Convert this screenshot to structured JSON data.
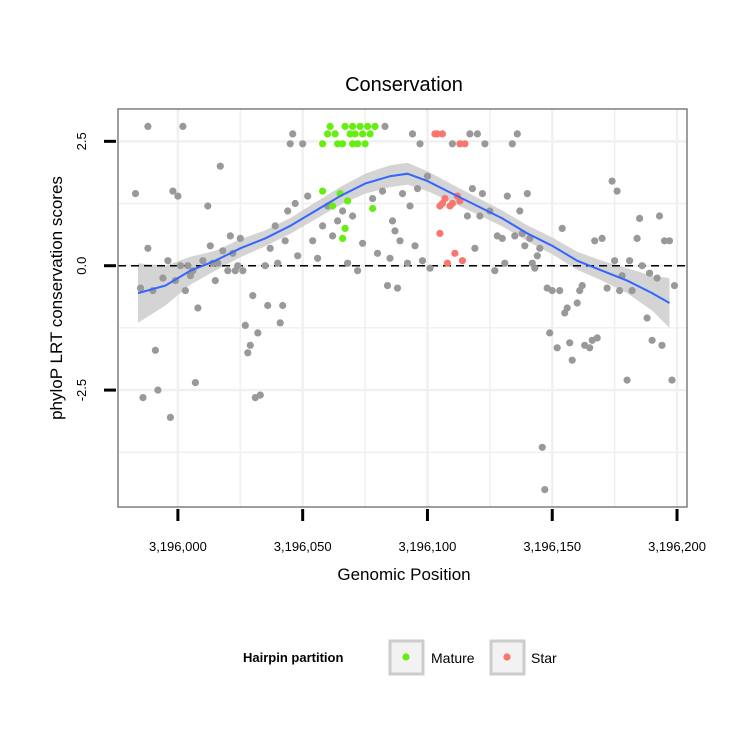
{
  "chart_data": {
    "type": "scatter",
    "title": "Conservation",
    "xlabel": "Genomic Position",
    "ylabel": "phyloP LRT conservation scores",
    "xlim": [
      3195976,
      3196204
    ],
    "ylim": [
      -4.85,
      3.15
    ],
    "x_ticks": [
      3196000,
      3196050,
      3196100,
      3196150,
      3196200
    ],
    "x_tick_labels": [
      "3,196,000",
      "3,196,050",
      "3,196,100",
      "3,196,150",
      "3,196,200"
    ],
    "y_ticks": [
      -2.5,
      0.0,
      2.5
    ],
    "y_tick_labels": [
      "-2.5",
      "0.0",
      "2.5"
    ],
    "reference_line": {
      "y": 0,
      "style": "dashed"
    },
    "legend": {
      "title": "Hairpin partition",
      "position": "bottom",
      "entries": [
        {
          "name": "Mature",
          "color": "#66ee11"
        },
        {
          "name": "Star",
          "color": "#f8766d"
        }
      ]
    },
    "colors": {
      "other": "#999999",
      "mature": "#66ee11",
      "star": "#f8766d",
      "smooth": "#3366ff",
      "ribbon": "#cccccc",
      "grid": "#f0f0f0",
      "panel_border": "#7f7f7f"
    },
    "series": [
      {
        "name": "Other",
        "points": [
          [
            3195983,
            1.45
          ],
          [
            3195985,
            -0.45
          ],
          [
            3195986,
            -2.65
          ],
          [
            3195988,
            2.8
          ],
          [
            3195988,
            0.35
          ],
          [
            3195990,
            -0.5
          ],
          [
            3195991,
            -1.7
          ],
          [
            3195992,
            -2.5
          ],
          [
            3195994,
            -0.25
          ],
          [
            3195996,
            0.1
          ],
          [
            3195997,
            -3.05
          ],
          [
            3195998,
            1.5
          ],
          [
            3195999,
            -0.3
          ],
          [
            3196000,
            1.4
          ],
          [
            3196001,
            0.0
          ],
          [
            3196002,
            2.8
          ],
          [
            3196003,
            -0.5
          ],
          [
            3196004,
            0.0
          ],
          [
            3196005,
            -0.2
          ],
          [
            3196006,
            -0.1
          ],
          [
            3196007,
            -2.35
          ],
          [
            3196008,
            -0.85
          ],
          [
            3196010,
            0.1
          ],
          [
            3196012,
            1.2
          ],
          [
            3196013,
            0.4
          ],
          [
            3196014,
            0.05
          ],
          [
            3196015,
            -0.3
          ],
          [
            3196016,
            0.05
          ],
          [
            3196017,
            2.0
          ],
          [
            3196018,
            0.3
          ],
          [
            3196020,
            -0.1
          ],
          [
            3196021,
            0.6
          ],
          [
            3196022,
            0.25
          ],
          [
            3196023,
            -0.1
          ],
          [
            3196024,
            0.0
          ],
          [
            3196025,
            0.55
          ],
          [
            3196026,
            -0.1
          ],
          [
            3196027,
            -1.2
          ],
          [
            3196028,
            -1.75
          ],
          [
            3196029,
            -1.6
          ],
          [
            3196030,
            -0.6
          ],
          [
            3196031,
            -2.65
          ],
          [
            3196032,
            -1.35
          ],
          [
            3196033,
            -2.6
          ],
          [
            3196035,
            0.0
          ],
          [
            3196036,
            -0.8
          ],
          [
            3196037,
            0.35
          ],
          [
            3196039,
            0.8
          ],
          [
            3196040,
            0.05
          ],
          [
            3196041,
            -1.15
          ],
          [
            3196042,
            -0.8
          ],
          [
            3196043,
            0.5
          ],
          [
            3196044,
            1.1
          ],
          [
            3196045,
            2.45
          ],
          [
            3196046,
            2.65
          ],
          [
            3196047,
            1.25
          ],
          [
            3196048,
            0.2
          ],
          [
            3196050,
            2.45
          ],
          [
            3196052,
            1.4
          ],
          [
            3196054,
            0.5
          ],
          [
            3196056,
            0.15
          ],
          [
            3196058,
            0.8
          ],
          [
            3196060,
            1.2
          ],
          [
            3196062,
            0.6
          ],
          [
            3196064,
            0.9
          ],
          [
            3196066,
            1.1
          ],
          [
            3196068,
            0.05
          ],
          [
            3196070,
            1.0
          ],
          [
            3196072,
            -0.1
          ],
          [
            3196074,
            0.45
          ],
          [
            3196078,
            1.35
          ],
          [
            3196080,
            0.25
          ],
          [
            3196082,
            1.5
          ],
          [
            3196083,
            2.8
          ],
          [
            3196084,
            -0.4
          ],
          [
            3196085,
            0.15
          ],
          [
            3196086,
            0.9
          ],
          [
            3196087,
            0.7
          ],
          [
            3196088,
            -0.45
          ],
          [
            3196089,
            0.5
          ],
          [
            3196090,
            1.45
          ],
          [
            3196092,
            0.05
          ],
          [
            3196093,
            1.2
          ],
          [
            3196094,
            2.65
          ],
          [
            3196095,
            0.4
          ],
          [
            3196096,
            1.55
          ],
          [
            3196097,
            2.45
          ],
          [
            3196098,
            0.1
          ],
          [
            3196100,
            1.8
          ],
          [
            3196101,
            -0.05
          ],
          [
            3196110,
            2.45
          ],
          [
            3196116,
            1.0
          ],
          [
            3196117,
            2.65
          ],
          [
            3196118,
            1.55
          ],
          [
            3196119,
            0.35
          ],
          [
            3196120,
            2.65
          ],
          [
            3196121,
            1.0
          ],
          [
            3196122,
            1.45
          ],
          [
            3196123,
            2.45
          ],
          [
            3196125,
            1.1
          ],
          [
            3196127,
            -0.1
          ],
          [
            3196128,
            0.6
          ],
          [
            3196130,
            0.55
          ],
          [
            3196131,
            0.05
          ],
          [
            3196132,
            1.4
          ],
          [
            3196134,
            2.45
          ],
          [
            3196135,
            0.6
          ],
          [
            3196136,
            2.65
          ],
          [
            3196137,
            1.1
          ],
          [
            3196138,
            0.65
          ],
          [
            3196139,
            0.4
          ],
          [
            3196140,
            1.45
          ],
          [
            3196141,
            0.55
          ],
          [
            3196142,
            0.05
          ],
          [
            3196143,
            -0.05
          ],
          [
            3196144,
            0.2
          ],
          [
            3196145,
            0.35
          ],
          [
            3196146,
            -3.65
          ],
          [
            3196147,
            -4.5
          ],
          [
            3196148,
            -0.45
          ],
          [
            3196149,
            -1.35
          ],
          [
            3196150,
            -0.5
          ],
          [
            3196152,
            -1.65
          ],
          [
            3196153,
            -0.5
          ],
          [
            3196154,
            0.75
          ],
          [
            3196155,
            -0.95
          ],
          [
            3196156,
            -0.85
          ],
          [
            3196157,
            -1.55
          ],
          [
            3196158,
            -1.9
          ],
          [
            3196160,
            -0.75
          ],
          [
            3196161,
            -0.5
          ],
          [
            3196162,
            -0.4
          ],
          [
            3196163,
            -1.6
          ],
          [
            3196165,
            -1.65
          ],
          [
            3196166,
            -1.5
          ],
          [
            3196167,
            0.5
          ],
          [
            3196168,
            -1.45
          ],
          [
            3196170,
            0.55
          ],
          [
            3196172,
            -0.45
          ],
          [
            3196174,
            1.7
          ],
          [
            3196175,
            0.1
          ],
          [
            3196176,
            1.5
          ],
          [
            3196177,
            -0.5
          ],
          [
            3196178,
            -0.2
          ],
          [
            3196180,
            -2.3
          ],
          [
            3196181,
            0.1
          ],
          [
            3196182,
            -0.5
          ],
          [
            3196184,
            0.55
          ],
          [
            3196185,
            0.95
          ],
          [
            3196186,
            0.0
          ],
          [
            3196188,
            -1.05
          ],
          [
            3196189,
            -0.15
          ],
          [
            3196190,
            -1.5
          ],
          [
            3196192,
            -0.25
          ],
          [
            3196193,
            1.0
          ],
          [
            3196194,
            -1.6
          ],
          [
            3196195,
            0.5
          ],
          [
            3196197,
            0.5
          ],
          [
            3196198,
            -2.3
          ],
          [
            3196199,
            -0.4
          ]
        ]
      },
      {
        "name": "Mature",
        "points": [
          [
            3196058,
            2.45
          ],
          [
            3196058,
            1.5
          ],
          [
            3196060,
            2.65
          ],
          [
            3196061,
            2.8
          ],
          [
            3196062,
            1.2
          ],
          [
            3196063,
            2.65
          ],
          [
            3196064,
            2.45
          ],
          [
            3196065,
            1.45
          ],
          [
            3196066,
            2.45
          ],
          [
            3196066,
            0.55
          ],
          [
            3196067,
            2.8
          ],
          [
            3196067,
            0.75
          ],
          [
            3196068,
            1.3
          ],
          [
            3196069,
            2.65
          ],
          [
            3196070,
            2.45
          ],
          [
            3196070,
            2.8
          ],
          [
            3196071,
            2.65
          ],
          [
            3196072,
            2.45
          ],
          [
            3196073,
            2.8
          ],
          [
            3196074,
            2.65
          ],
          [
            3196075,
            2.45
          ],
          [
            3196076,
            2.8
          ],
          [
            3196077,
            2.65
          ],
          [
            3196078,
            1.15
          ],
          [
            3196079,
            2.8
          ]
        ]
      },
      {
        "name": "Star",
        "points": [
          [
            3196103,
            2.65
          ],
          [
            3196104,
            2.65
          ],
          [
            3196105,
            0.65
          ],
          [
            3196105,
            1.2
          ],
          [
            3196106,
            2.65
          ],
          [
            3196106,
            1.25
          ],
          [
            3196107,
            1.35
          ],
          [
            3196108,
            0.05
          ],
          [
            3196109,
            1.2
          ],
          [
            3196110,
            1.25
          ],
          [
            3196111,
            0.25
          ],
          [
            3196112,
            1.4
          ],
          [
            3196113,
            2.45
          ],
          [
            3196113,
            1.3
          ],
          [
            3196114,
            0.1
          ],
          [
            3196115,
            2.45
          ]
        ]
      }
    ],
    "smooth": {
      "x": [
        3195984,
        3195995,
        3196005,
        3196015,
        3196025,
        3196035,
        3196045,
        3196055,
        3196065,
        3196075,
        3196085,
        3196092,
        3196100,
        3196110,
        3196120,
        3196130,
        3196140,
        3196150,
        3196160,
        3196170,
        3196180,
        3196190,
        3196197
      ],
      "y": [
        -0.55,
        -0.4,
        -0.1,
        0.1,
        0.35,
        0.55,
        0.8,
        1.1,
        1.4,
        1.65,
        1.8,
        1.85,
        1.7,
        1.45,
        1.2,
        0.95,
        0.65,
        0.4,
        0.1,
        -0.1,
        -0.3,
        -0.55,
        -0.75
      ],
      "se": [
        0.6,
        0.4,
        0.28,
        0.2,
        0.18,
        0.16,
        0.16,
        0.17,
        0.18,
        0.2,
        0.22,
        0.22,
        0.2,
        0.18,
        0.17,
        0.16,
        0.16,
        0.17,
        0.18,
        0.2,
        0.25,
        0.35,
        0.5
      ]
    }
  }
}
